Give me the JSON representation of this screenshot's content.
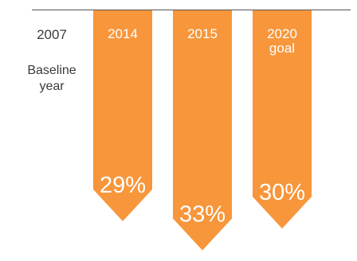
{
  "chart_data": {
    "type": "bar",
    "orientation": "downward-arrows",
    "baseline": {
      "year": "2007",
      "label": "Baseline year"
    },
    "categories": [
      "2014",
      "2015",
      "2020 goal"
    ],
    "values": [
      29,
      33,
      30
    ],
    "value_labels": [
      "29%",
      "33%",
      "30%"
    ],
    "unit": "%",
    "color": "#f7963b",
    "label_color": "#ffffff",
    "text_color": "#3a3a3a",
    "grid": false,
    "legend": "none"
  }
}
